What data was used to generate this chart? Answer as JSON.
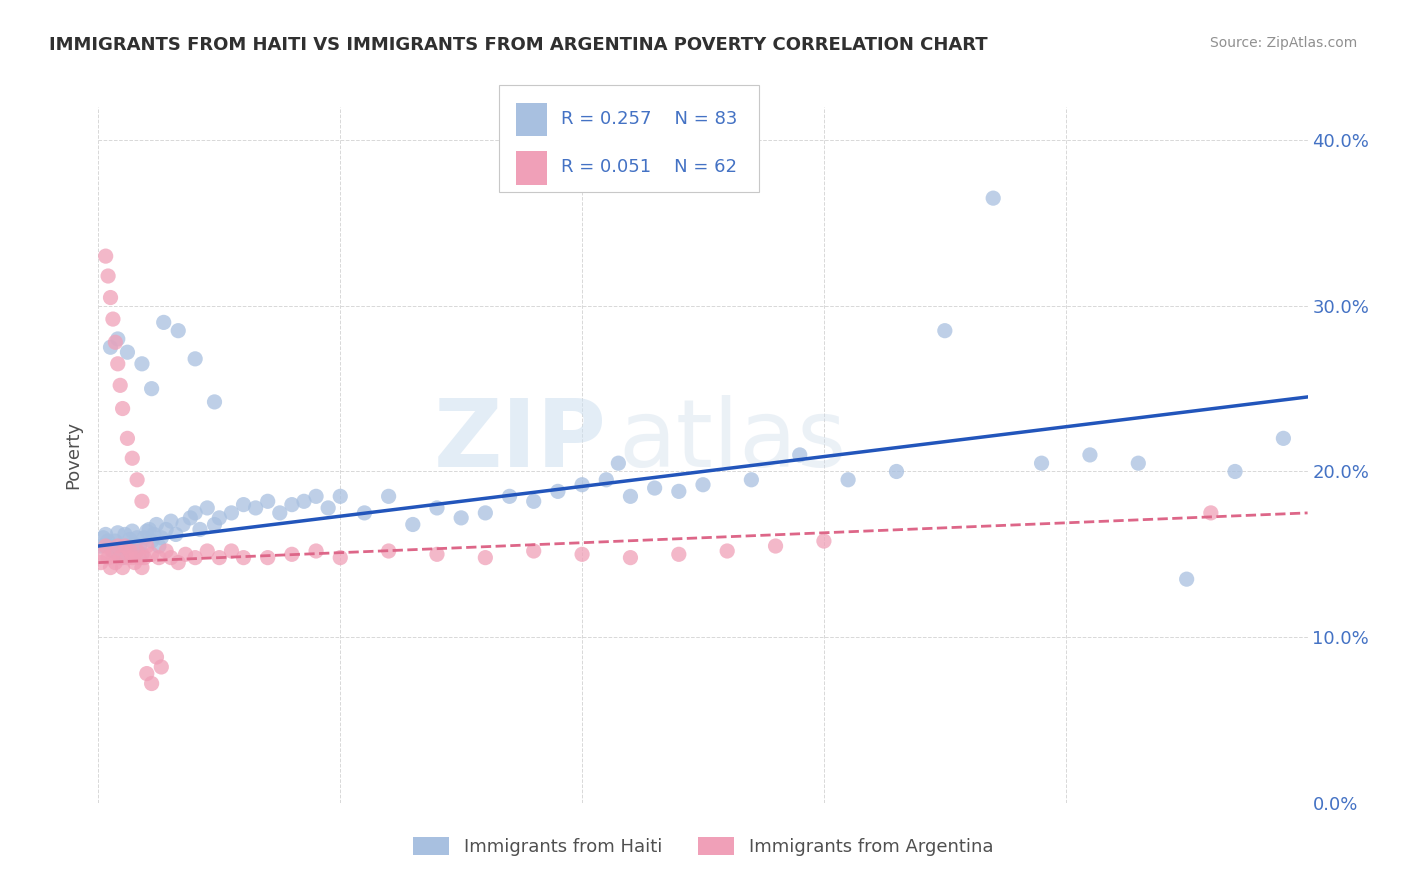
{
  "title": "IMMIGRANTS FROM HAITI VS IMMIGRANTS FROM ARGENTINA POVERTY CORRELATION CHART",
  "source": "Source: ZipAtlas.com",
  "ylabel": "Poverty",
  "xlim": [
    0.0,
    0.5
  ],
  "ylim": [
    0.0,
    0.42
  ],
  "watermark_line1": "ZIP",
  "watermark_line2": "atlas",
  "legend_r1": "R = 0.257",
  "legend_n1": "N = 83",
  "legend_r2": "R = 0.051",
  "legend_n2": "N = 62",
  "haiti_color": "#a8c0e0",
  "argentina_color": "#f0a0b8",
  "haiti_line_color": "#2255bb",
  "argentina_line_color": "#dd6688",
  "title_color": "#303030",
  "source_color": "#909090",
  "axis_label_color": "#505050",
  "tick_label_color": "#4472c4",
  "grid_color": "#d8d8d8",
  "background_color": "#ffffff",
  "x_ticks": [
    0.0,
    0.1,
    0.2,
    0.3,
    0.4,
    0.5
  ],
  "y_ticks": [
    0.0,
    0.1,
    0.2,
    0.3,
    0.4
  ],
  "haiti_x": [
    0.001,
    0.002,
    0.003,
    0.004,
    0.005,
    0.006,
    0.007,
    0.008,
    0.009,
    0.01,
    0.011,
    0.012,
    0.013,
    0.014,
    0.015,
    0.016,
    0.017,
    0.018,
    0.019,
    0.02,
    0.021,
    0.022,
    0.023,
    0.024,
    0.025,
    0.026,
    0.028,
    0.03,
    0.032,
    0.035,
    0.038,
    0.04,
    0.042,
    0.045,
    0.048,
    0.05,
    0.055,
    0.06,
    0.065,
    0.07,
    0.075,
    0.08,
    0.085,
    0.09,
    0.095,
    0.1,
    0.11,
    0.12,
    0.13,
    0.14,
    0.15,
    0.16,
    0.17,
    0.18,
    0.19,
    0.2,
    0.21,
    0.22,
    0.23,
    0.24,
    0.25,
    0.27,
    0.29,
    0.31,
    0.33,
    0.35,
    0.37,
    0.39,
    0.41,
    0.43,
    0.45,
    0.47,
    0.49,
    0.005,
    0.008,
    0.012,
    0.018,
    0.022,
    0.027,
    0.033,
    0.04,
    0.048,
    0.215
  ],
  "haiti_y": [
    0.155,
    0.16,
    0.162,
    0.158,
    0.155,
    0.152,
    0.158,
    0.163,
    0.15,
    0.148,
    0.162,
    0.155,
    0.159,
    0.164,
    0.156,
    0.16,
    0.155,
    0.15,
    0.16,
    0.164,
    0.165,
    0.158,
    0.162,
    0.168,
    0.155,
    0.16,
    0.165,
    0.17,
    0.162,
    0.168,
    0.172,
    0.175,
    0.165,
    0.178,
    0.168,
    0.172,
    0.175,
    0.18,
    0.178,
    0.182,
    0.175,
    0.18,
    0.182,
    0.185,
    0.178,
    0.185,
    0.175,
    0.185,
    0.168,
    0.178,
    0.172,
    0.175,
    0.185,
    0.182,
    0.188,
    0.192,
    0.195,
    0.185,
    0.19,
    0.188,
    0.192,
    0.195,
    0.21,
    0.195,
    0.2,
    0.285,
    0.365,
    0.205,
    0.21,
    0.205,
    0.135,
    0.2,
    0.22,
    0.275,
    0.28,
    0.272,
    0.265,
    0.25,
    0.29,
    0.285,
    0.268,
    0.242,
    0.205
  ],
  "argentina_x": [
    0.001,
    0.002,
    0.003,
    0.004,
    0.005,
    0.006,
    0.007,
    0.008,
    0.009,
    0.01,
    0.011,
    0.012,
    0.013,
    0.014,
    0.015,
    0.016,
    0.017,
    0.018,
    0.019,
    0.02,
    0.022,
    0.025,
    0.028,
    0.03,
    0.033,
    0.036,
    0.04,
    0.045,
    0.05,
    0.055,
    0.06,
    0.07,
    0.08,
    0.09,
    0.1,
    0.12,
    0.14,
    0.16,
    0.18,
    0.2,
    0.22,
    0.24,
    0.26,
    0.28,
    0.3,
    0.46,
    0.003,
    0.004,
    0.005,
    0.006,
    0.007,
    0.008,
    0.009,
    0.01,
    0.012,
    0.014,
    0.016,
    0.018,
    0.02,
    0.022,
    0.024,
    0.026
  ],
  "argentina_y": [
    0.145,
    0.15,
    0.155,
    0.148,
    0.142,
    0.15,
    0.145,
    0.155,
    0.148,
    0.142,
    0.155,
    0.148,
    0.152,
    0.148,
    0.145,
    0.152,
    0.148,
    0.142,
    0.148,
    0.155,
    0.15,
    0.148,
    0.152,
    0.148,
    0.145,
    0.15,
    0.148,
    0.152,
    0.148,
    0.152,
    0.148,
    0.148,
    0.15,
    0.152,
    0.148,
    0.152,
    0.15,
    0.148,
    0.152,
    0.15,
    0.148,
    0.15,
    0.152,
    0.155,
    0.158,
    0.175,
    0.33,
    0.318,
    0.305,
    0.292,
    0.278,
    0.265,
    0.252,
    0.238,
    0.22,
    0.208,
    0.195,
    0.182,
    0.078,
    0.072,
    0.088,
    0.082
  ]
}
